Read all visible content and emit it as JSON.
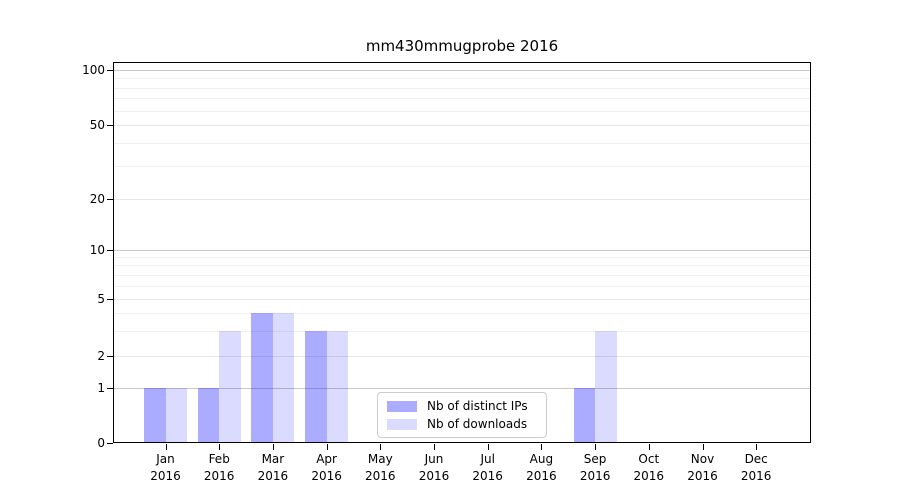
{
  "window": {
    "background": "#ffffff"
  },
  "chart_data": {
    "type": "bar",
    "title": "mm430mmugprobe 2016",
    "categories": [
      {
        "month": "Jan",
        "year": "2016"
      },
      {
        "month": "Feb",
        "year": "2016"
      },
      {
        "month": "Mar",
        "year": "2016"
      },
      {
        "month": "Apr",
        "year": "2016"
      },
      {
        "month": "May",
        "year": "2016"
      },
      {
        "month": "Jun",
        "year": "2016"
      },
      {
        "month": "Jul",
        "year": "2016"
      },
      {
        "month": "Aug",
        "year": "2016"
      },
      {
        "month": "Sep",
        "year": "2016"
      },
      {
        "month": "Oct",
        "year": "2016"
      },
      {
        "month": "Nov",
        "year": "2016"
      },
      {
        "month": "Dec",
        "year": "2016"
      }
    ],
    "series": [
      {
        "name": "Nb of distinct IPs",
        "color": "rgba(0,0,255,0.33)",
        "values": [
          1,
          1,
          4,
          3,
          0,
          0,
          0,
          0,
          1,
          0,
          0,
          0
        ]
      },
      {
        "name": "Nb of downloads",
        "color": "rgba(0,0,255,0.14)",
        "values": [
          1,
          3,
          4,
          3,
          0,
          0,
          0,
          0,
          3,
          0,
          0,
          0
        ]
      }
    ],
    "xlabel": "",
    "ylabel": "",
    "y_ticks": [
      0,
      1,
      2,
      5,
      10,
      20,
      50,
      100
    ],
    "y_minor_ticks": [
      3,
      4,
      6,
      7,
      8,
      9,
      30,
      40,
      60,
      70,
      80,
      90
    ],
    "y_emphasized_gridlines": [
      1,
      10,
      100
    ],
    "ylim": [
      0,
      110
    ],
    "scale": "log-like above 1, linear 0-1",
    "grid": true,
    "legend_position": "inside lower-center"
  },
  "colors": {
    "grid_major": "#c9c9c9",
    "grid_light": "#e7e7e7",
    "grid_minor": "#f0f0f0",
    "axis": "#000000",
    "legend_border": "#cccccc"
  }
}
